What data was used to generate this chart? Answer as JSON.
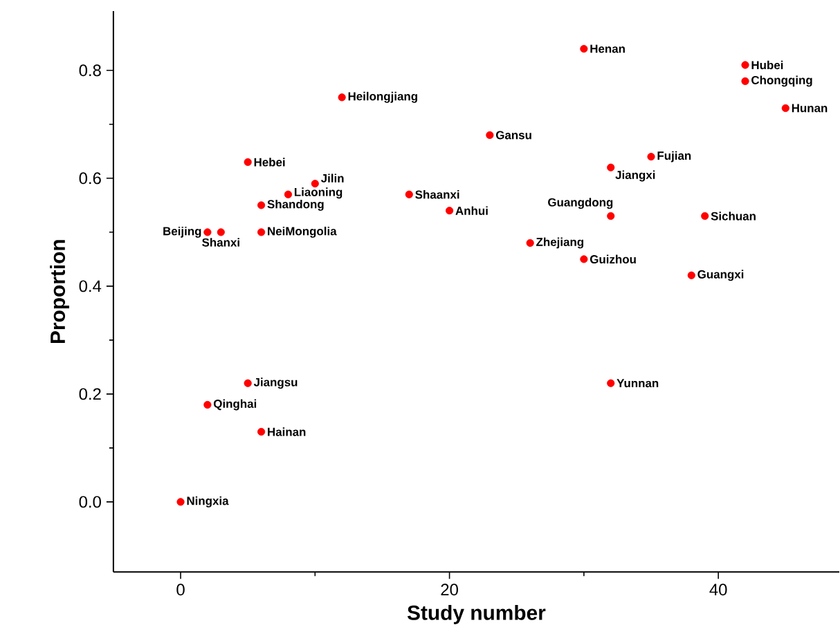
{
  "chart_data": {
    "type": "scatter",
    "xlabel": "Study number",
    "ylabel": "Proportion",
    "xlim": [
      -5,
      49
    ],
    "ylim": [
      -0.13,
      0.91
    ],
    "xticks": [
      0,
      20,
      40
    ],
    "yticks": [
      {
        "value": 0,
        "label": "0.0"
      },
      0.2,
      0.4,
      0.6,
      0.8
    ],
    "grid": false,
    "series": [
      {
        "color": "#ff0000",
        "x": [
          0,
          2,
          5,
          6,
          2,
          3,
          6,
          6,
          8,
          10,
          5,
          12,
          17,
          20,
          23,
          30,
          26,
          30,
          32,
          32,
          35,
          32,
          38,
          39,
          42,
          42,
          45
        ],
        "values": [
          0,
          0.18,
          0.22,
          0.13,
          0.5,
          0.5,
          0.5,
          0.55,
          0.57,
          0.59,
          0.63,
          0.75,
          0.57,
          0.54,
          0.68,
          0.84,
          0.48,
          0.45,
          0.53,
          0.62,
          0.64,
          0.22,
          0.42,
          0.53,
          0.81,
          0.78,
          0.73
        ]
      }
    ],
    "annotations": [
      {
        "text": "Ningxia",
        "x": 0,
        "y": 0
      },
      {
        "text": "Qinghai",
        "x": 2,
        "y": 0.18
      },
      {
        "text": "Jiangsu",
        "x": 5,
        "y": 0.22
      },
      {
        "text": "Hainan",
        "x": 6,
        "y": 0.13
      },
      {
        "text": "Beijing",
        "x": 2,
        "y": 0.5
      },
      {
        "text": "Shanxi",
        "x": 3,
        "y": 0.5
      },
      {
        "text": "NeiMongolia",
        "x": 6,
        "y": 0.5
      },
      {
        "text": "Shandong",
        "x": 6,
        "y": 0.55
      },
      {
        "text": "Liaoning",
        "x": 8,
        "y": 0.57
      },
      {
        "text": "Jilin",
        "x": 10,
        "y": 0.59
      },
      {
        "text": "Hebei",
        "x": 5,
        "y": 0.63
      },
      {
        "text": "Heilongjiang",
        "x": 12,
        "y": 0.75
      },
      {
        "text": "Shaanxi",
        "x": 17,
        "y": 0.57
      },
      {
        "text": "Anhui",
        "x": 20,
        "y": 0.54
      },
      {
        "text": "Gansu",
        "x": 23,
        "y": 0.68
      },
      {
        "text": "Henan",
        "x": 30,
        "y": 0.84
      },
      {
        "text": "Zhejiang",
        "x": 26,
        "y": 0.48
      },
      {
        "text": "Guizhou",
        "x": 30,
        "y": 0.45
      },
      {
        "text": "Guangdong",
        "x": 32,
        "y": 0.53
      },
      {
        "text": "Jiangxi",
        "x": 32,
        "y": 0.62
      },
      {
        "text": "Fujian",
        "x": 35,
        "y": 0.64
      },
      {
        "text": "Yunnan",
        "x": 32,
        "y": 0.22
      },
      {
        "text": "Guangxi",
        "x": 38,
        "y": 0.42
      },
      {
        "text": "Sichuan",
        "x": 39,
        "y": 0.53
      },
      {
        "text": "Hubei",
        "x": 42,
        "y": 0.81
      },
      {
        "text": "Chongqing",
        "x": 42,
        "y": 0.78
      },
      {
        "text": "Hunan",
        "x": 45,
        "y": 0.73
      }
    ]
  }
}
